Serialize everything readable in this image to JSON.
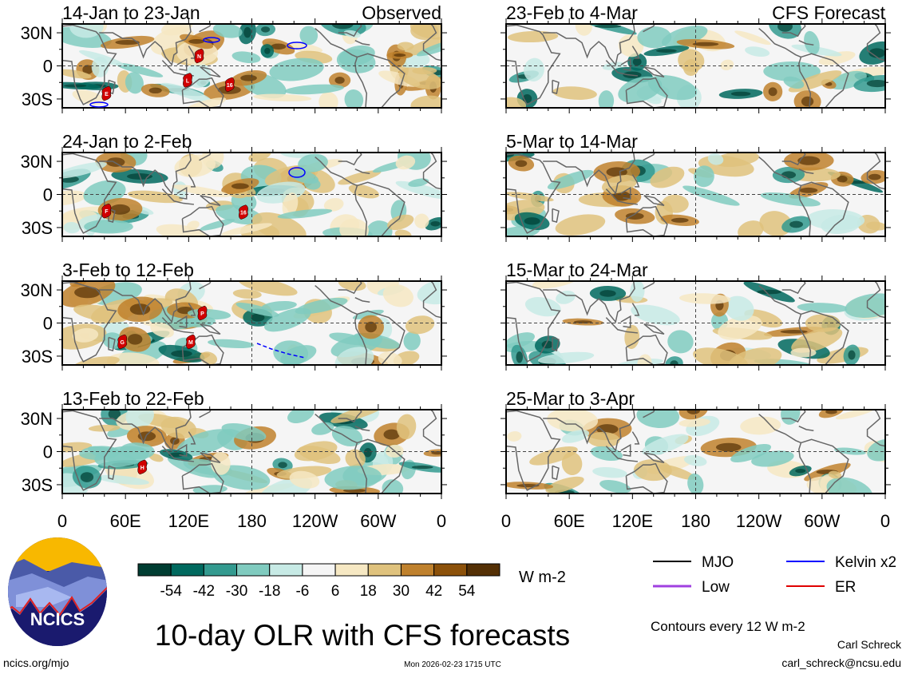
{
  "chart_data": {
    "type": "heatmap",
    "title": "10-day OLR with CFS forecasts",
    "variable": "OLR anomaly",
    "units": "W m-2",
    "x_ticks": [
      "0",
      "60E",
      "120E",
      "180",
      "120W",
      "60W",
      "0"
    ],
    "y_ticks": [
      "30N",
      "0",
      "30S"
    ],
    "lon_range": [
      0,
      360
    ],
    "lat_range": [
      -38,
      38
    ],
    "colorbar": {
      "ticks": [
        "-54",
        "-42",
        "-30",
        "-18",
        "-6",
        "6",
        "18",
        "30",
        "42",
        "54"
      ],
      "colors": [
        "#003d32",
        "#00695e",
        "#339a8f",
        "#80cbbf",
        "#c7eae5",
        "#f5f5f5",
        "#f6e8c3",
        "#dfc27d",
        "#bf812d",
        "#8c510a",
        "#543005"
      ]
    },
    "panels": [
      {
        "title": "14-Jan to 23-Jan",
        "label": "Observed",
        "storms": [
          {
            "name": "N",
            "lon": 130,
            "lat": 9
          },
          {
            "name": "L",
            "lon": 119,
            "lat": -13
          },
          {
            "name": "16",
            "lon": 159,
            "lat": -17
          },
          {
            "name": "E",
            "lon": 42,
            "lat": -25
          }
        ]
      },
      {
        "title": "24-Jan to 2-Feb",
        "label": "",
        "storms": [
          {
            "name": "F",
            "lon": 42,
            "lat": -15
          },
          {
            "name": "16",
            "lon": 172,
            "lat": -16
          }
        ]
      },
      {
        "title": "3-Feb to 12-Feb",
        "label": "",
        "storms": [
          {
            "name": "P",
            "lon": 133,
            "lat": 9
          },
          {
            "name": "G",
            "lon": 57,
            "lat": -17
          },
          {
            "name": "M",
            "lon": 122,
            "lat": -17
          }
        ]
      },
      {
        "title": "13-Feb to 22-Feb",
        "label": "",
        "storms": [
          {
            "name": "H",
            "lon": 76,
            "lat": -14
          }
        ]
      },
      {
        "title": "23-Feb to 4-Mar",
        "label": "CFS Forecast",
        "storms": []
      },
      {
        "title": "5-Mar to 14-Mar",
        "label": "",
        "storms": []
      },
      {
        "title": "15-Mar to 24-Mar",
        "label": "",
        "storms": []
      },
      {
        "title": "25-Mar to 3-Apr",
        "label": "",
        "storms": []
      }
    ]
  },
  "legend": {
    "units_label": "W m-2",
    "items": [
      {
        "label": "MJO",
        "color": "#000000"
      },
      {
        "label": "Kelvin x2",
        "color": "#0000ff"
      },
      {
        "label": "Low",
        "color": "#a040e0"
      },
      {
        "label": "ER",
        "color": "#e00000"
      }
    ],
    "contours_note": "Contours every 12 W m-2"
  },
  "footer": {
    "logo_text": "NCICS",
    "url": "ncics.org/mjo",
    "timestamp": "Mon 2026-02-23 1715 UTC",
    "author": "Carl Schreck",
    "email": "carl_schreck@ncsu.edu"
  }
}
